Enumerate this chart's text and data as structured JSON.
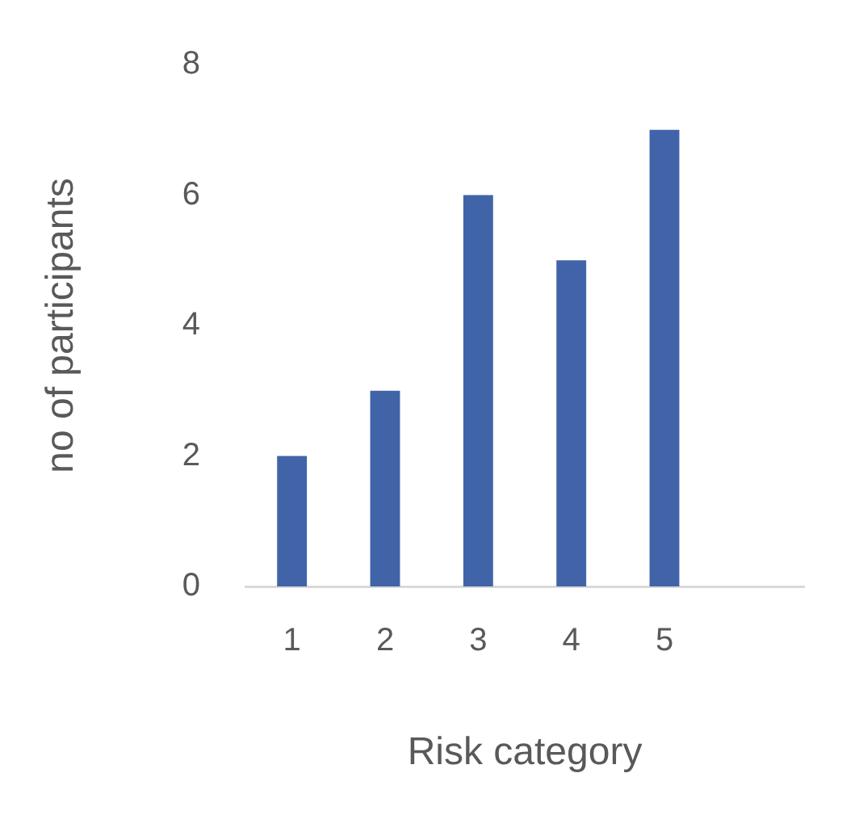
{
  "chart_data": {
    "type": "bar",
    "xlabel": "Risk category",
    "ylabel": "no of participants",
    "categories": [
      "1",
      "2",
      "3",
      "4",
      "5",
      null
    ],
    "values": [
      2,
      3,
      6,
      5,
      7,
      null
    ],
    "color": "#4164a9",
    "ylim": [
      0,
      8
    ],
    "yticks": [
      0,
      2,
      4,
      6,
      8
    ],
    "grid": false,
    "legend": false
  }
}
